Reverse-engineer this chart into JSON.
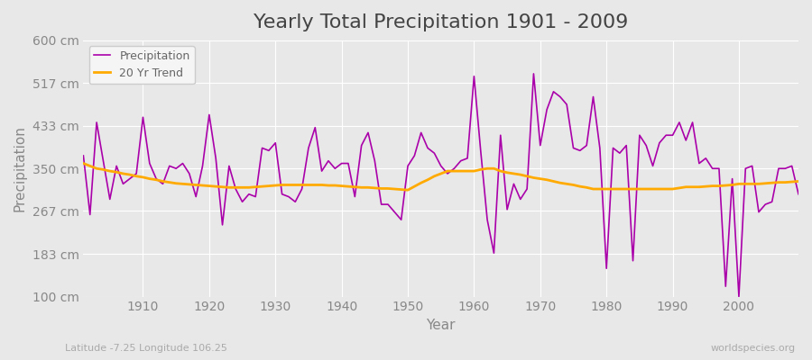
{
  "title": "Yearly Total Precipitation 1901 - 2009",
  "xlabel": "Year",
  "ylabel": "Precipitation",
  "subtitle": "Latitude -7.25 Longitude 106.25",
  "watermark": "worldspecies.org",
  "ylim": [
    100,
    600
  ],
  "yticks": [
    100,
    183,
    267,
    350,
    433,
    517,
    600
  ],
  "ytick_labels": [
    "100 cm",
    "183 cm",
    "267 cm",
    "350 cm",
    "433 cm",
    "517 cm",
    "600 cm"
  ],
  "xlim": [
    1901,
    2009
  ],
  "years": [
    1901,
    1902,
    1903,
    1904,
    1905,
    1906,
    1907,
    1908,
    1909,
    1910,
    1911,
    1912,
    1913,
    1914,
    1915,
    1916,
    1917,
    1918,
    1919,
    1920,
    1921,
    1922,
    1923,
    1924,
    1925,
    1926,
    1927,
    1928,
    1929,
    1930,
    1931,
    1932,
    1933,
    1934,
    1935,
    1936,
    1937,
    1938,
    1939,
    1940,
    1941,
    1942,
    1943,
    1944,
    1945,
    1946,
    1947,
    1948,
    1949,
    1950,
    1951,
    1952,
    1953,
    1954,
    1955,
    1956,
    1957,
    1958,
    1959,
    1960,
    1961,
    1962,
    1963,
    1964,
    1965,
    1966,
    1967,
    1968,
    1969,
    1970,
    1971,
    1972,
    1973,
    1974,
    1975,
    1976,
    1977,
    1978,
    1979,
    1980,
    1981,
    1982,
    1983,
    1984,
    1985,
    1986,
    1987,
    1988,
    1989,
    1990,
    1991,
    1992,
    1993,
    1994,
    1995,
    1996,
    1997,
    1998,
    1999,
    2000,
    2001,
    2002,
    2003,
    2004,
    2005,
    2006,
    2007,
    2008,
    2009
  ],
  "precipitation": [
    375,
    260,
    440,
    365,
    290,
    355,
    320,
    330,
    340,
    450,
    360,
    330,
    320,
    355,
    350,
    360,
    340,
    295,
    355,
    455,
    370,
    240,
    355,
    310,
    285,
    300,
    295,
    390,
    385,
    400,
    300,
    295,
    285,
    310,
    390,
    430,
    345,
    365,
    350,
    360,
    360,
    295,
    395,
    420,
    365,
    280,
    280,
    265,
    250,
    355,
    375,
    420,
    390,
    380,
    355,
    340,
    350,
    365,
    370,
    530,
    385,
    250,
    185,
    415,
    270,
    320,
    290,
    310,
    535,
    395,
    465,
    500,
    490,
    475,
    390,
    385,
    395,
    490,
    390,
    155,
    390,
    380,
    395,
    170,
    415,
    395,
    355,
    400,
    415,
    415,
    440,
    405,
    440,
    360,
    370,
    350,
    350,
    120,
    330,
    100,
    350,
    355,
    265,
    280,
    285,
    350,
    350,
    355,
    300
  ],
  "trend": [
    360,
    355,
    350,
    348,
    345,
    343,
    340,
    338,
    335,
    333,
    330,
    328,
    325,
    323,
    321,
    320,
    319,
    318,
    317,
    316,
    315,
    314,
    313,
    313,
    313,
    313,
    314,
    315,
    316,
    317,
    318,
    318,
    318,
    318,
    318,
    318,
    318,
    317,
    317,
    316,
    315,
    314,
    313,
    313,
    312,
    311,
    311,
    310,
    309,
    308,
    315,
    322,
    328,
    335,
    340,
    345,
    345,
    345,
    345,
    345,
    348,
    350,
    350,
    345,
    342,
    340,
    338,
    335,
    332,
    330,
    328,
    325,
    322,
    320,
    318,
    315,
    313,
    310,
    310,
    310,
    310,
    310,
    310,
    310,
    310,
    310,
    310,
    310,
    310,
    310,
    312,
    314,
    314,
    314,
    315,
    316,
    316,
    317,
    318,
    320,
    320,
    320,
    320,
    321,
    322,
    323,
    323,
    324,
    325
  ],
  "precip_color": "#aa00aa",
  "trend_color": "#ffaa00",
  "bg_color": "#e8e8e8",
  "plot_bg_color": "#e8e8e8",
  "grid_color": "#ffffff",
  "legend_bg": "#f5f5f5",
  "title_fontsize": 16,
  "axis_label_fontsize": 11,
  "tick_fontsize": 10
}
